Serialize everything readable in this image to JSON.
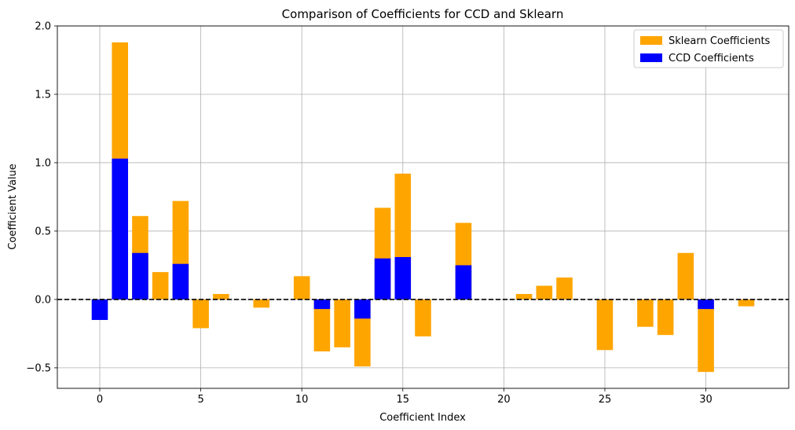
{
  "chart_data": {
    "type": "bar",
    "title": "Comparison of Coefficients for CCD and Sklearn",
    "xlabel": "Coefficient Index",
    "ylabel": "Coefficient Value",
    "xlim": [
      -2.1,
      34.1
    ],
    "ylim": [
      -0.65,
      2.0
    ],
    "xticks": [
      0,
      5,
      10,
      15,
      20,
      25,
      30
    ],
    "yticks": [
      -0.5,
      0.0,
      0.5,
      1.0,
      1.5,
      2.0
    ],
    "ytick_labels": [
      "−0.5",
      "0.0",
      "0.5",
      "1.0",
      "1.5",
      "2.0"
    ],
    "grid": true,
    "legend_position": "top-right",
    "zero_line": {
      "y": 0,
      "style": "dashed",
      "color": "#000000"
    },
    "x": [
      0,
      1,
      2,
      3,
      4,
      5,
      6,
      7,
      8,
      9,
      10,
      11,
      12,
      13,
      14,
      15,
      16,
      17,
      18,
      19,
      20,
      21,
      22,
      23,
      24,
      25,
      26,
      27,
      28,
      29,
      30,
      31,
      32
    ],
    "series": [
      {
        "name": "Sklearn Coefficients",
        "color": "#ffa500",
        "values": [
          0.0,
          1.88,
          0.61,
          0.2,
          0.72,
          -0.21,
          0.04,
          0.0,
          -0.06,
          0.0,
          0.17,
          -0.38,
          -0.35,
          -0.49,
          0.67,
          0.92,
          -0.27,
          0.0,
          0.56,
          0.0,
          0.0,
          0.04,
          0.1,
          0.16,
          0.0,
          -0.37,
          0.0,
          -0.2,
          -0.26,
          0.34,
          -0.53,
          0.0,
          -0.05
        ]
      },
      {
        "name": "CCD Coefficients",
        "color": "#0000ff",
        "values": [
          -0.15,
          1.03,
          0.34,
          0.0,
          0.26,
          0.0,
          0.0,
          0.0,
          0.0,
          0.0,
          0.0,
          -0.07,
          0.0,
          -0.14,
          0.3,
          0.31,
          0.0,
          0.0,
          0.25,
          0.0,
          0.0,
          0.0,
          0.0,
          0.0,
          0.0,
          0.0,
          0.0,
          0.0,
          0.0,
          0.0,
          -0.07,
          0.0,
          0.0
        ]
      }
    ]
  }
}
